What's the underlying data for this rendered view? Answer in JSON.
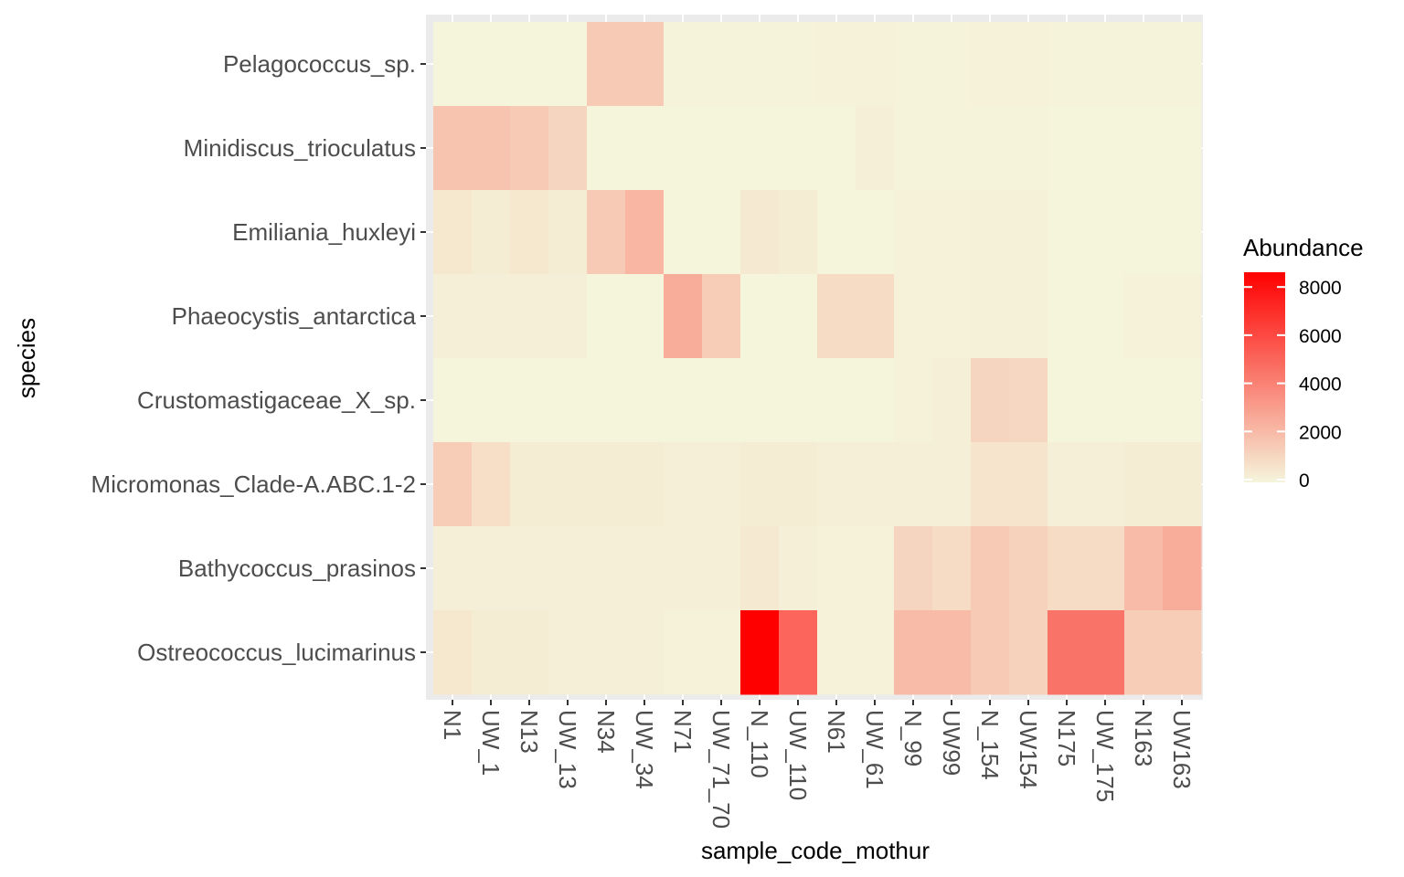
{
  "chart_data": {
    "type": "heatmap",
    "title": "",
    "xlabel": "sample_code_mothur",
    "ylabel": "species",
    "x": [
      "N1",
      "UW_1",
      "N13",
      "UW_13",
      "N34",
      "UW_34",
      "N71",
      "UW_71_70",
      "N_110",
      "UW_110",
      "N61",
      "UW_61",
      "N_99",
      "UW99",
      "N_154",
      "UW154",
      "N175",
      "UW_175",
      "N163",
      "UW163"
    ],
    "y": [
      "Pelagococcus_sp.",
      "Minidiscus_trioculatus",
      "Emiliania_huxleyi",
      "Phaeocystis_antarctica",
      "Crustomastigaceae_X_sp.",
      "Micromonas_Clade-A.ABC.1-2",
      "Bathycoccus_prasinos",
      "Ostreococcus_lucimarinus"
    ],
    "values": [
      [
        0,
        0,
        0,
        0,
        1500,
        1500,
        80,
        80,
        60,
        60,
        100,
        100,
        80,
        80,
        100,
        100,
        80,
        80,
        80,
        80
      ],
      [
        1700,
        1700,
        1500,
        1100,
        0,
        0,
        0,
        0,
        0,
        0,
        0,
        200,
        80,
        80,
        80,
        80,
        0,
        0,
        0,
        0
      ],
      [
        500,
        300,
        500,
        300,
        1500,
        2200,
        0,
        0,
        400,
        300,
        0,
        0,
        100,
        100,
        150,
        150,
        0,
        0,
        0,
        0
      ],
      [
        200,
        200,
        200,
        200,
        0,
        0,
        2500,
        1400,
        0,
        0,
        900,
        900,
        100,
        100,
        150,
        150,
        0,
        0,
        100,
        100
      ],
      [
        0,
        0,
        0,
        0,
        0,
        0,
        0,
        0,
        0,
        0,
        0,
        0,
        100,
        200,
        1100,
        1000,
        0,
        0,
        0,
        0
      ],
      [
        1400,
        800,
        300,
        300,
        300,
        300,
        200,
        200,
        300,
        300,
        200,
        200,
        200,
        200,
        600,
        600,
        200,
        200,
        300,
        300
      ],
      [
        200,
        200,
        200,
        200,
        200,
        200,
        200,
        200,
        400,
        200,
        100,
        100,
        1100,
        900,
        1500,
        1200,
        900,
        900,
        2000,
        2500
      ],
      [
        500,
        300,
        300,
        200,
        200,
        200,
        100,
        100,
        8500,
        5000,
        100,
        100,
        2000,
        2000,
        1500,
        1200,
        4500,
        4500,
        1400,
        1400
      ]
    ],
    "color_scale": {
      "low": "#f5f5dc",
      "high": "#ff0000",
      "min": 0,
      "max": 8500
    },
    "legend": {
      "title": "Abundance",
      "ticks": [
        8000,
        6000,
        4000,
        2000,
        0
      ],
      "placement": "right"
    },
    "panel_background": "#ebebeb",
    "grid": true
  }
}
